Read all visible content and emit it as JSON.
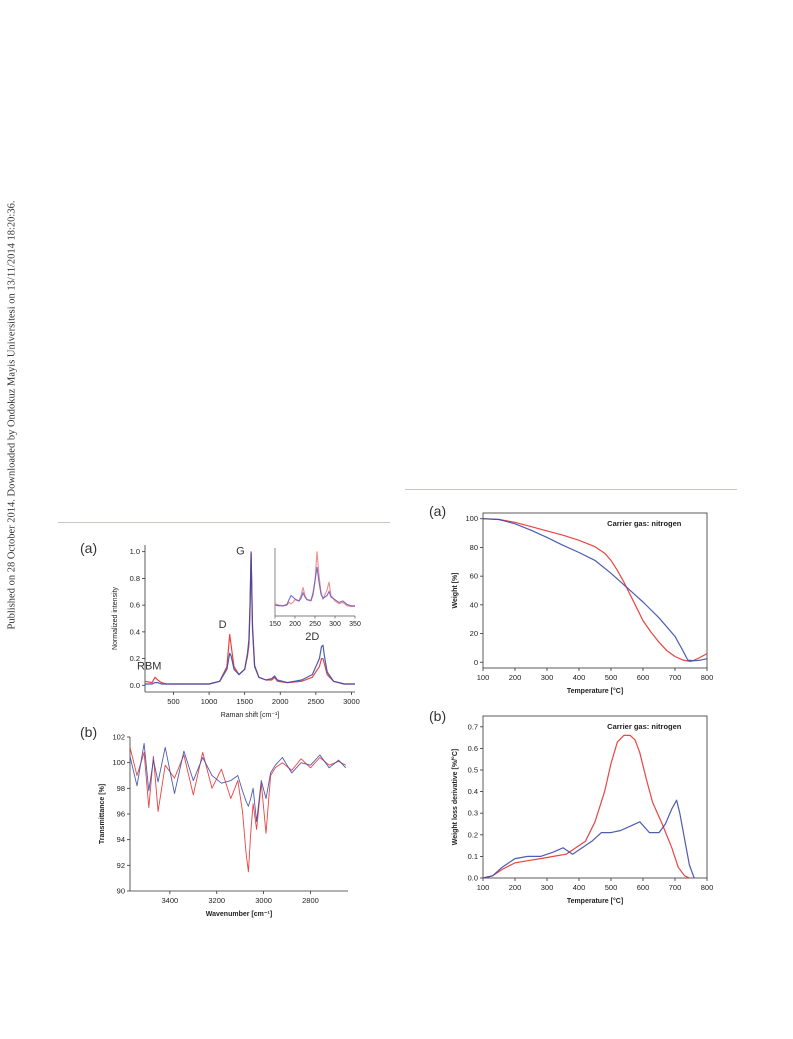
{
  "publication_note": "Published on 28 October 2014. Downloaded by Ondokuz Mayis Universitesi on 13/11/2014 18:20:36.",
  "colors": {
    "red": "#e8302e",
    "blue": "#3b4aa8",
    "pink": "#f08080",
    "violet": "#6a5bbf",
    "rule": "#c9c8bd"
  },
  "chart_data": [
    {
      "id": "raman",
      "panel_label": "(a)",
      "type": "line",
      "xlabel": "Raman shift [cm⁻¹]",
      "ylabel": "Normalized intensity",
      "xlim": [
        100,
        3050
      ],
      "ylim": [
        -0.05,
        1.05
      ],
      "xticks": [
        500,
        1000,
        1500,
        2000,
        2500,
        3000
      ],
      "yticks": [
        0.0,
        0.2,
        0.4,
        0.6,
        0.8,
        1.0
      ],
      "peak_labels": [
        {
          "text": "RBM",
          "x": 160,
          "y": 0.12
        },
        {
          "text": "D",
          "x": 1190,
          "y": 0.43
        },
        {
          "text": "G",
          "x": 1440,
          "y": 0.98
        },
        {
          "text": "2D",
          "x": 2450,
          "y": 0.34
        }
      ],
      "series": [
        {
          "color": "red",
          "x": [
            100,
            200,
            240,
            280,
            330,
            400,
            600,
            800,
            1000,
            1150,
            1250,
            1290,
            1310,
            1350,
            1420,
            1500,
            1540,
            1560,
            1575,
            1590,
            1610,
            1640,
            1700,
            1800,
            1880,
            1920,
            1960,
            2100,
            2300,
            2450,
            2550,
            2580,
            2600,
            2620,
            2660,
            2750,
            2900,
            3050
          ],
          "y": [
            0.03,
            0.02,
            0.06,
            0.04,
            0.02,
            0.01,
            0.01,
            0.01,
            0.01,
            0.03,
            0.14,
            0.38,
            0.3,
            0.14,
            0.08,
            0.12,
            0.22,
            0.3,
            0.55,
            1.0,
            0.45,
            0.15,
            0.06,
            0.04,
            0.04,
            0.06,
            0.03,
            0.02,
            0.03,
            0.06,
            0.14,
            0.2,
            0.2,
            0.16,
            0.08,
            0.03,
            0.01,
            0.01
          ]
        },
        {
          "color": "blue",
          "x": [
            100,
            200,
            240,
            280,
            330,
            400,
            600,
            800,
            1000,
            1150,
            1250,
            1290,
            1310,
            1350,
            1420,
            1500,
            1540,
            1560,
            1575,
            1590,
            1610,
            1640,
            1700,
            1800,
            1880,
            1920,
            1960,
            2100,
            2300,
            2450,
            2550,
            2580,
            2600,
            2620,
            2660,
            2750,
            2900,
            3050
          ],
          "y": [
            0.01,
            0.01,
            0.02,
            0.02,
            0.01,
            0.01,
            0.01,
            0.01,
            0.01,
            0.03,
            0.12,
            0.24,
            0.22,
            0.12,
            0.08,
            0.12,
            0.24,
            0.34,
            0.6,
            0.99,
            0.42,
            0.14,
            0.06,
            0.04,
            0.05,
            0.07,
            0.04,
            0.02,
            0.04,
            0.08,
            0.2,
            0.29,
            0.3,
            0.22,
            0.1,
            0.03,
            0.01,
            0.01
          ]
        }
      ],
      "inset": {
        "xlim": [
          150,
          350
        ],
        "ylim": [
          0,
          1
        ],
        "xticks": [
          150,
          200,
          250,
          300,
          350
        ],
        "series": [
          {
            "color": "pink",
            "x": [
              150,
              160,
              170,
              180,
              185,
              190,
              195,
              200,
              210,
              215,
              220,
              225,
              230,
              240,
              245,
              250,
              255,
              260,
              265,
              270,
              280,
              285,
              290,
              300,
              310,
              320,
              330,
              340,
              350
            ],
            "y": [
              0.18,
              0.16,
              0.15,
              0.16,
              0.2,
              0.18,
              0.2,
              0.24,
              0.22,
              0.3,
              0.42,
              0.3,
              0.24,
              0.22,
              0.3,
              0.5,
              0.95,
              0.6,
              0.35,
              0.25,
              0.38,
              0.5,
              0.3,
              0.22,
              0.18,
              0.2,
              0.15,
              0.14,
              0.14
            ]
          },
          {
            "color": "violet",
            "x": [
              150,
              160,
              170,
              180,
              185,
              190,
              195,
              200,
              210,
              215,
              220,
              225,
              230,
              240,
              245,
              250,
              255,
              260,
              265,
              270,
              280,
              285,
              290,
              300,
              310,
              320,
              330,
              340,
              350
            ],
            "y": [
              0.16,
              0.15,
              0.15,
              0.17,
              0.24,
              0.3,
              0.28,
              0.25,
              0.22,
              0.26,
              0.34,
              0.28,
              0.24,
              0.23,
              0.34,
              0.52,
              0.72,
              0.5,
              0.32,
              0.26,
              0.3,
              0.36,
              0.28,
              0.24,
              0.2,
              0.22,
              0.17,
              0.15,
              0.15
            ]
          }
        ]
      }
    },
    {
      "id": "ftir",
      "panel_label": "(b)",
      "type": "line",
      "xlabel": "Wavenumber [cm⁻¹]",
      "ylabel": "Transmittance [%]",
      "xlim": [
        3570,
        2640
      ],
      "ylim": [
        90,
        102
      ],
      "xticks": [
        3400,
        3200,
        3000,
        2800,
        2600
      ],
      "yticks": [
        90,
        92,
        94,
        96,
        98,
        100,
        102
      ],
      "series": [
        {
          "color": "red",
          "x": [
            3570,
            3540,
            3510,
            3490,
            3470,
            3450,
            3420,
            3380,
            3340,
            3300,
            3260,
            3220,
            3180,
            3140,
            3110,
            3090,
            3075,
            3065,
            3055,
            3045,
            3030,
            3010,
            2990,
            2970,
            2950,
            2920,
            2880,
            2840,
            2800,
            2760,
            2720,
            2680,
            2650
          ],
          "y": [
            101.2,
            99.0,
            100.8,
            96.5,
            100.5,
            96.2,
            99.8,
            98.8,
            100.6,
            97.5,
            100.8,
            98.0,
            99.5,
            97.2,
            98.6,
            96.2,
            93.0,
            91.5,
            94.5,
            96.8,
            94.8,
            98.4,
            94.5,
            99.0,
            99.6,
            100.0,
            99.4,
            100.3,
            99.6,
            100.4,
            99.8,
            100.1,
            99.8
          ]
        },
        {
          "color": "blue",
          "x": [
            3570,
            3540,
            3510,
            3490,
            3470,
            3450,
            3420,
            3380,
            3340,
            3300,
            3260,
            3220,
            3180,
            3140,
            3110,
            3090,
            3075,
            3065,
            3055,
            3045,
            3030,
            3010,
            2990,
            2970,
            2950,
            2920,
            2880,
            2840,
            2800,
            2760,
            2720,
            2680,
            2650
          ],
          "y": [
            100.5,
            98.2,
            101.5,
            97.8,
            100.2,
            98.5,
            101.2,
            97.6,
            100.9,
            98.6,
            100.4,
            99.0,
            98.4,
            98.6,
            99.0,
            97.8,
            97.0,
            96.6,
            97.2,
            98.0,
            95.4,
            98.6,
            97.2,
            99.2,
            99.8,
            100.4,
            99.2,
            100.0,
            99.8,
            100.6,
            99.6,
            100.2,
            99.6
          ]
        }
      ]
    },
    {
      "id": "tga",
      "panel_label": "(a)",
      "type": "line",
      "annotation": "Carrier gas: nitrogen",
      "xlabel": "Temperature [°C]",
      "ylabel": "Weight [%]",
      "xlim": [
        100,
        800
      ],
      "ylim": [
        -4,
        104
      ],
      "xticks": [
        100,
        200,
        300,
        400,
        500,
        600,
        700,
        800
      ],
      "yticks": [
        0,
        20,
        40,
        60,
        80,
        100
      ],
      "series": [
        {
          "color": "red",
          "x": [
            100,
            150,
            200,
            250,
            300,
            350,
            400,
            450,
            480,
            500,
            520,
            540,
            560,
            580,
            600,
            625,
            650,
            675,
            700,
            725,
            750,
            775,
            800
          ],
          "y": [
            100,
            99.5,
            97.5,
            94.5,
            91.5,
            88.5,
            85,
            80.5,
            76,
            71,
            64,
            56,
            47,
            38,
            29,
            21,
            14,
            8,
            4,
            1.5,
            0.5,
            3,
            6
          ]
        },
        {
          "color": "blue",
          "x": [
            100,
            150,
            200,
            250,
            300,
            350,
            400,
            450,
            500,
            550,
            600,
            650,
            700,
            725,
            740,
            760,
            780,
            800
          ],
          "y": [
            100,
            99.5,
            96.5,
            92,
            87,
            81.5,
            76.5,
            71,
            62,
            52,
            42,
            31,
            18,
            8,
            1.5,
            1,
            1.5,
            2.5
          ]
        }
      ]
    },
    {
      "id": "dtg",
      "panel_label": "(b)",
      "type": "line",
      "annotation": "Carrier gas: nitrogen",
      "xlabel": "Temperature [°C]",
      "ylabel": "Weight loss derivative [%/°C]",
      "xlim": [
        100,
        800
      ],
      "ylim": [
        0,
        0.75
      ],
      "xticks": [
        100,
        200,
        300,
        400,
        500,
        600,
        700,
        800
      ],
      "yticks": [
        0.0,
        0.1,
        0.2,
        0.3,
        0.4,
        0.5,
        0.6,
        0.7
      ],
      "series": [
        {
          "color": "red",
          "x": [
            100,
            130,
            160,
            200,
            240,
            280,
            320,
            360,
            390,
            420,
            450,
            480,
            500,
            520,
            540,
            560,
            575,
            590,
            610,
            630,
            660,
            690,
            710,
            730,
            745
          ],
          "y": [
            0,
            0.01,
            0.04,
            0.07,
            0.08,
            0.09,
            0.1,
            0.11,
            0.14,
            0.17,
            0.26,
            0.4,
            0.53,
            0.63,
            0.66,
            0.66,
            0.64,
            0.58,
            0.46,
            0.35,
            0.25,
            0.14,
            0.05,
            0.01,
            0
          ]
        },
        {
          "color": "blue",
          "x": [
            100,
            130,
            160,
            200,
            240,
            280,
            320,
            350,
            380,
            410,
            440,
            470,
            500,
            530,
            560,
            590,
            620,
            650,
            670,
            690,
            705,
            715,
            730,
            745,
            760
          ],
          "y": [
            0,
            0.01,
            0.05,
            0.09,
            0.1,
            0.1,
            0.12,
            0.14,
            0.11,
            0.14,
            0.17,
            0.21,
            0.21,
            0.22,
            0.24,
            0.26,
            0.21,
            0.21,
            0.25,
            0.32,
            0.36,
            0.3,
            0.18,
            0.06,
            0
          ]
        }
      ]
    }
  ]
}
